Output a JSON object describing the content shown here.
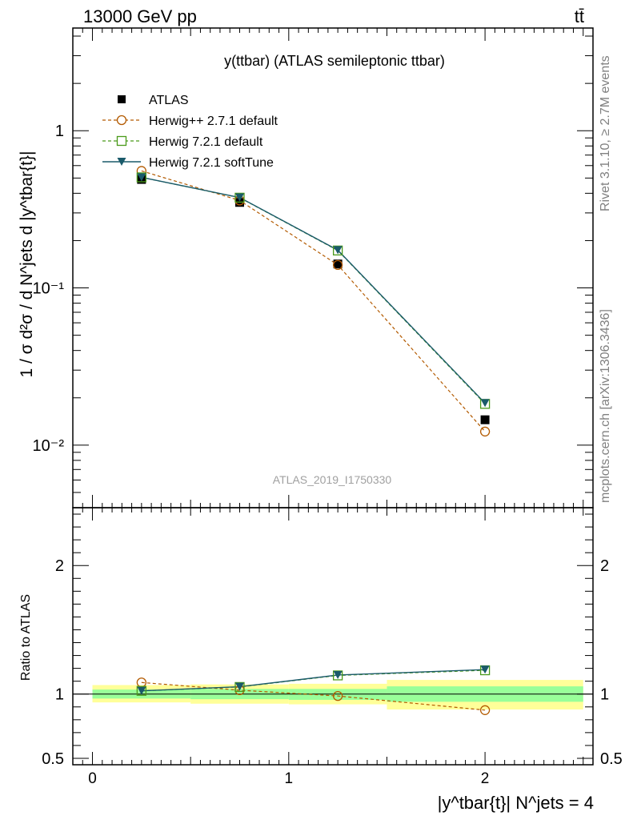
{
  "header": {
    "left": "13000 GeV pp",
    "right": "tt̄"
  },
  "side_labels": {
    "rivet": "Rivet 3.1.10, ≥ 2.7M events",
    "mcplots": "mcplots.cern.ch [arXiv:1306.3436]"
  },
  "analysis_id": "ATLAS_2019_I1750330",
  "chart_data": [
    {
      "type": "line",
      "panel": "main",
      "title": "y(ttbar) (ATLAS semileptonic ttbar)",
      "ylabel": "1 / σ d²σ / d N^jets d |y^tbar{t}|",
      "yscale": "log",
      "ylim": [
        0.004,
        4.5
      ],
      "xlim": [
        -0.1,
        2.55
      ],
      "yticks": [
        {
          "value": 1,
          "label": "1"
        },
        {
          "value": 0.1,
          "label": "10⁻¹"
        },
        {
          "value": 0.01,
          "label": "10⁻²"
        }
      ],
      "legend_position": "top-left",
      "x": [
        0.25,
        0.75,
        1.25,
        2.0
      ],
      "series": [
        {
          "name": "ATLAS",
          "values": [
            0.49,
            0.35,
            0.142,
            0.0145
          ],
          "color": "#000000",
          "style": "markers"
        },
        {
          "name": "Herwig++ 2.7.1 default",
          "values": [
            0.555,
            0.36,
            0.14,
            0.0122
          ],
          "color": "#b35a00",
          "style": "dashed-circle"
        },
        {
          "name": "Herwig 7.2.1 default",
          "values": [
            0.505,
            0.375,
            0.173,
            0.0183
          ],
          "color": "#4a9a1a",
          "style": "dashed-square"
        },
        {
          "name": "Herwig 7.2.1 softTune",
          "values": [
            0.505,
            0.376,
            0.174,
            0.0185
          ],
          "color": "#1a5a6a",
          "style": "solid-triangle"
        }
      ]
    },
    {
      "type": "line",
      "panel": "ratio",
      "ylabel": "Ratio to ATLAS",
      "xlabel": "|y^tbar{t}| N^jets = 4",
      "ylim": [
        0.45,
        2.45
      ],
      "xlim": [
        -0.1,
        2.55
      ],
      "yticks": [
        {
          "value": 0.5,
          "label": "0.5"
        },
        {
          "value": 1,
          "label": "1"
        },
        {
          "value": 2,
          "label": "2"
        }
      ],
      "xticks": [
        {
          "value": 0,
          "label": "0"
        },
        {
          "value": 1,
          "label": "1"
        },
        {
          "value": 2,
          "label": "2"
        }
      ],
      "bands": [
        {
          "x0": 0.0,
          "x1": 0.5,
          "stat_lo": 0.965,
          "stat_hi": 1.035,
          "tot_lo": 0.935,
          "tot_hi": 1.07
        },
        {
          "x0": 0.5,
          "x1": 1.0,
          "stat_lo": 0.96,
          "stat_hi": 1.04,
          "tot_lo": 0.925,
          "tot_hi": 1.075
        },
        {
          "x0": 1.0,
          "x1": 1.5,
          "stat_lo": 0.955,
          "stat_hi": 1.04,
          "tot_lo": 0.92,
          "tot_hi": 1.08
        },
        {
          "x0": 1.5,
          "x1": 2.5,
          "stat_lo": 0.94,
          "stat_hi": 1.06,
          "tot_lo": 0.88,
          "tot_hi": 1.11
        }
      ],
      "x": [
        0.25,
        0.75,
        1.25,
        2.0
      ],
      "series": [
        {
          "name": "Herwig++ 2.7.1 default",
          "values": [
            1.09,
            1.03,
            0.985,
            0.875
          ],
          "color": "#b35a00",
          "style": "dashed-circle"
        },
        {
          "name": "Herwig 7.2.1 default",
          "values": [
            1.025,
            1.055,
            1.145,
            1.185
          ],
          "color": "#4a9a1a",
          "style": "dashed-square"
        },
        {
          "name": "Herwig 7.2.1 softTune",
          "values": [
            1.025,
            1.057,
            1.148,
            1.19
          ],
          "color": "#1a5a6a",
          "style": "solid-triangle"
        }
      ]
    }
  ]
}
